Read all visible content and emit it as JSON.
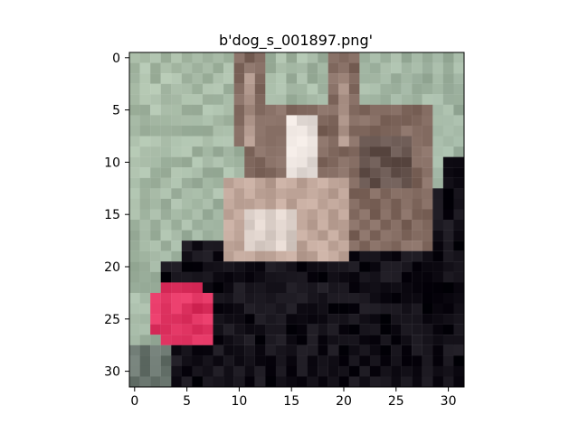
{
  "figure": {
    "title": "b'dog_s_001897.png'",
    "x_tick_labels": [
      "0",
      "5",
      "10",
      "15",
      "20",
      "25",
      "30"
    ],
    "y_tick_labels": [
      "0",
      "5",
      "10",
      "15",
      "20",
      "25",
      "30"
    ]
  },
  "image": {
    "grid_size": 32,
    "subject": "dog",
    "palette": {
      "background": "#9fb4a4",
      "background_light": "#b2c5b0",
      "dark_body": "#1b1820",
      "fur_brown": "#8a7268",
      "fur_light": "#c8aea2",
      "white": "#efe7e2",
      "pink_toy": "#e63a68"
    }
  }
}
